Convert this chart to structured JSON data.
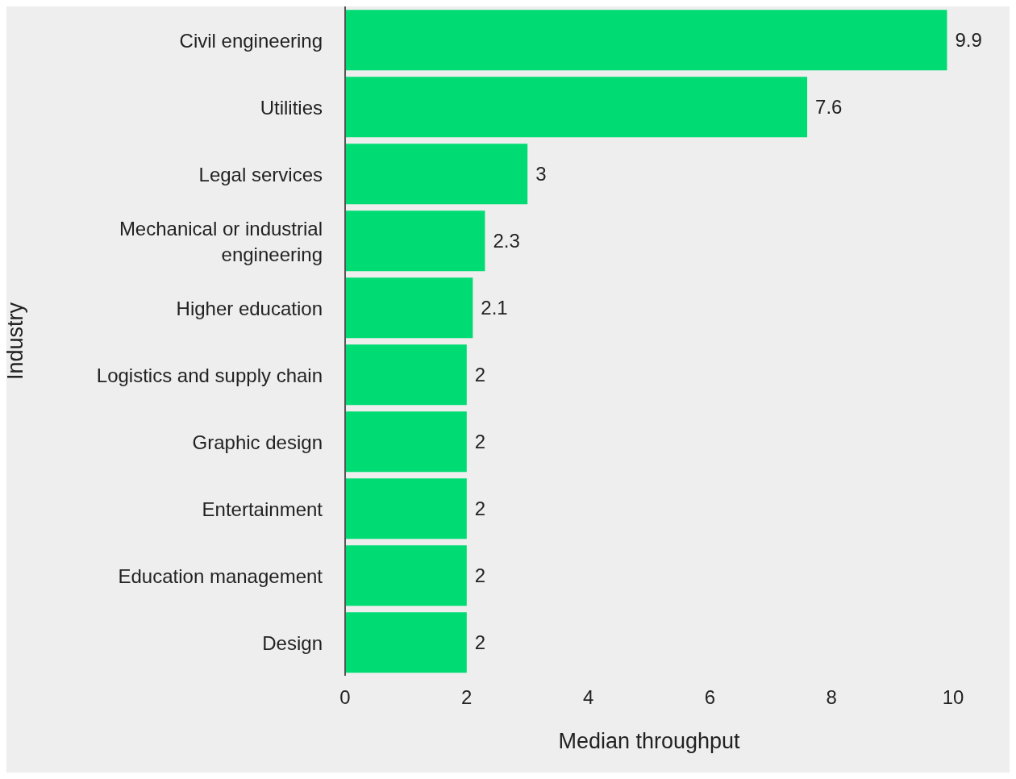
{
  "chart_data": {
    "type": "bar",
    "orientation": "horizontal",
    "xlabel": "Median throughput",
    "ylabel": "Industry",
    "categories": [
      "Civil engineering",
      "Utilities",
      "Legal services",
      "Mechanical or industrial engineering",
      "Higher education",
      "Logistics and supply chain",
      "Graphic design",
      "Entertainment",
      "Education management",
      "Design"
    ],
    "values": [
      9.9,
      7.6,
      3,
      2.3,
      2.1,
      2,
      2,
      2,
      2,
      2
    ],
    "color": "#00dc73",
    "xlim": [
      0,
      10
    ],
    "xticks": [
      0,
      2,
      4,
      6,
      8,
      10
    ],
    "data_labels": true,
    "grid": false
  }
}
